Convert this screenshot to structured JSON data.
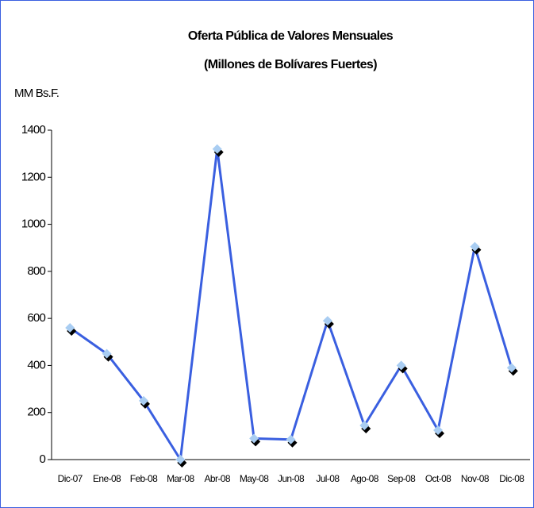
{
  "chart_data": {
    "type": "line",
    "title": "Oferta Pública de Valores Mensuales",
    "subtitle": "(Millones de Bolívares Fuertes)",
    "y_label": "MM Bs.F.",
    "categories": [
      "Dic-07",
      "Ene-08",
      "Feb-08",
      "Mar-08",
      "Abr-08",
      "May-08",
      "Jun-08",
      "Jul-08",
      "Ago-08",
      "Sep-08",
      "Oct-08",
      "Nov-08",
      "Dic-08"
    ],
    "values": [
      560,
      450,
      250,
      0,
      1320,
      90,
      85,
      590,
      145,
      400,
      125,
      905,
      390
    ],
    "color": "#3a5fe0",
    "marker_color": "#a9cdf2",
    "ylim": [
      0,
      1400
    ],
    "yticks": [
      0,
      200,
      400,
      600,
      800,
      1000,
      1200,
      1400
    ],
    "grid": false
  }
}
